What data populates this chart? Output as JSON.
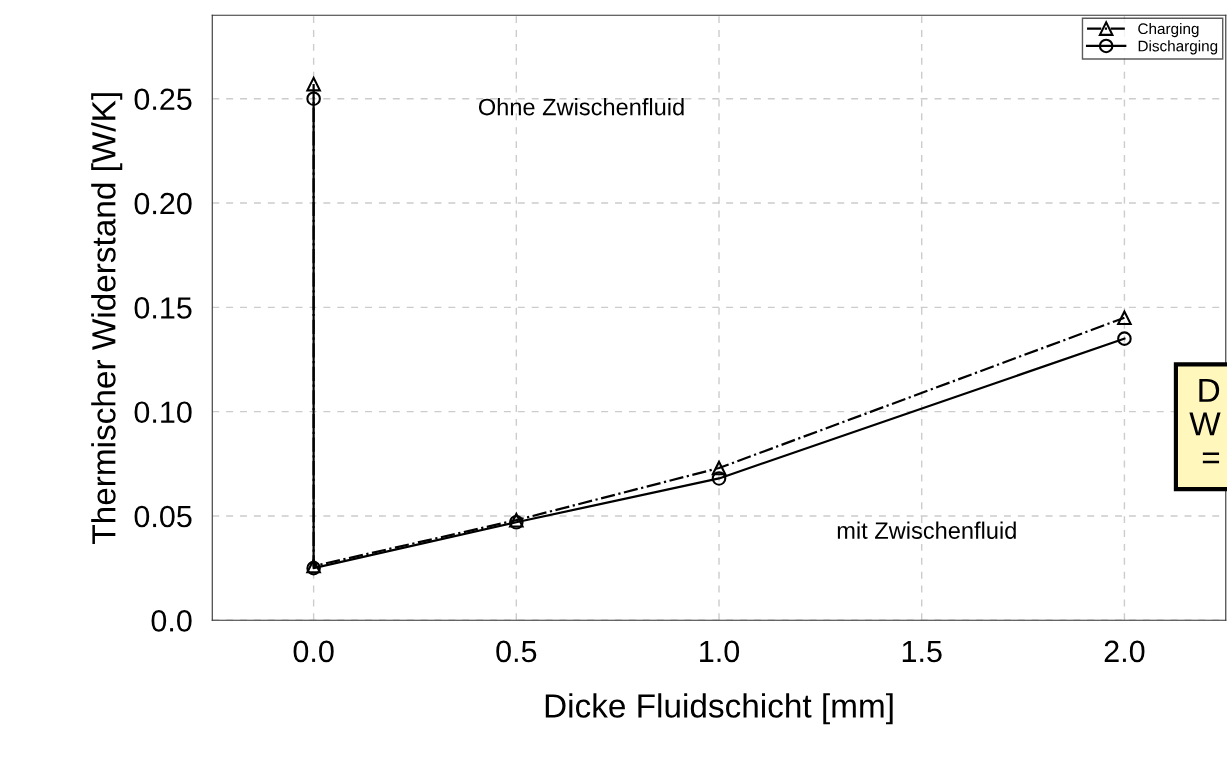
{
  "chart_data": {
    "type": "line",
    "xlabel": "Dicke Fluidschicht [mm]",
    "ylabel": "Thermischer Widerstand [W/K]",
    "x": [
      0,
      0,
      0.5,
      1.0,
      2.0
    ],
    "series": [
      {
        "name": "Charging",
        "color": "#000000",
        "marker": "triangle",
        "line_style": "dashdot",
        "values": [
          0.257,
          0.026,
          0.048,
          0.073,
          0.145
        ]
      },
      {
        "name": "Discharging",
        "color": "#000000",
        "marker": "circle",
        "line_style": "solid",
        "values": [
          0.25,
          0.025,
          0.047,
          0.068,
          0.135
        ]
      }
    ],
    "xlim": [
      -0.25,
      2.25
    ],
    "xticks": [
      {
        "value": 0,
        "label": "0.0"
      },
      0.5,
      {
        "value": 1,
        "label": "1.0"
      },
      1.5,
      {
        "value": 2,
        "label": "2.0"
      }
    ],
    "ylim": [
      0,
      0.29
    ],
    "yticks": [
      {
        "value": 0,
        "label": "0.0"
      },
      0.05,
      {
        "value": 0.1,
        "label": "0.10"
      },
      0.15,
      {
        "value": 0.2,
        "label": "0.20"
      },
      0.25
    ],
    "grid": true,
    "legend": "top right",
    "annotations": [
      "Ohne Zwischenfluid",
      "mit Zwischenfluid",
      "D\nW\n="
    ]
  }
}
